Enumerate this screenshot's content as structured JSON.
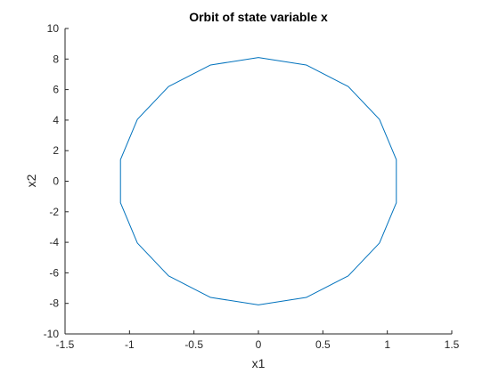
{
  "chart_data": {
    "type": "line",
    "title": "Orbit of state variable x",
    "xlabel": "x1",
    "ylabel": "x2",
    "xlim": [
      -1.5,
      1.5
    ],
    "ylim": [
      -10,
      10
    ],
    "xticks": [
      -1.5,
      -1,
      -0.5,
      0,
      0.5,
      1,
      1.5
    ],
    "xtick_labels": [
      "-1.5",
      "-1",
      "-0.5",
      "0",
      "0.5",
      "1",
      "1.5"
    ],
    "yticks": [
      -10,
      -8,
      -6,
      -4,
      -2,
      0,
      2,
      4,
      6,
      8,
      10
    ],
    "ytick_labels": [
      "-10",
      "-8",
      "-6",
      "-4",
      "-2",
      "0",
      "2",
      "4",
      "6",
      "8",
      "10"
    ],
    "grid": false,
    "box": "off",
    "line_color": "#0072BD",
    "axis_color": "#262626",
    "series": [
      {
        "x": [
          0,
          0.371,
          0.697,
          0.939,
          1.07,
          1.07,
          0.939,
          0.697,
          0.371,
          0,
          -0.371,
          -0.697,
          -0.939,
          -1.07,
          -1.07,
          -0.939,
          -0.697,
          -0.371,
          0,
          0.371,
          0.697,
          0.939,
          1.07,
          1.07,
          0.939,
          0.697,
          0.371,
          0,
          -0.371,
          -0.697,
          -0.939,
          -1.07,
          -1.07,
          -0.939,
          -0.697,
          -0.371,
          0
        ],
        "y": [
          8.1,
          7.61,
          6.2,
          4.05,
          1.41,
          -1.41,
          -4.05,
          -6.2,
          -7.61,
          -8.1,
          -7.61,
          -6.2,
          -4.05,
          -1.41,
          1.41,
          4.05,
          6.2,
          7.61,
          8.1,
          7.61,
          6.2,
          4.05,
          1.41,
          -1.41,
          -4.05,
          -6.2,
          -7.61,
          -8.1,
          -7.61,
          -6.2,
          -4.05,
          -1.41,
          1.41,
          4.05,
          6.2,
          7.61,
          8.1
        ]
      }
    ]
  }
}
